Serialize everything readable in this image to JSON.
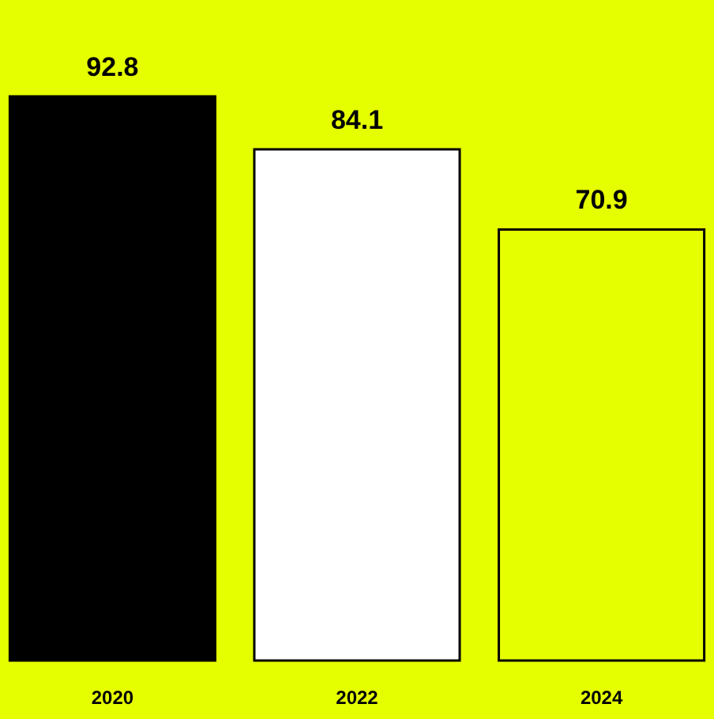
{
  "chart_data": {
    "type": "bar",
    "categories": [
      "2020",
      "2022",
      "2024"
    ],
    "values": [
      92.8,
      84.1,
      70.9
    ],
    "colors": [
      "#000000",
      "#ffffff",
      "#e6ff00"
    ],
    "data_labels": true
  }
}
